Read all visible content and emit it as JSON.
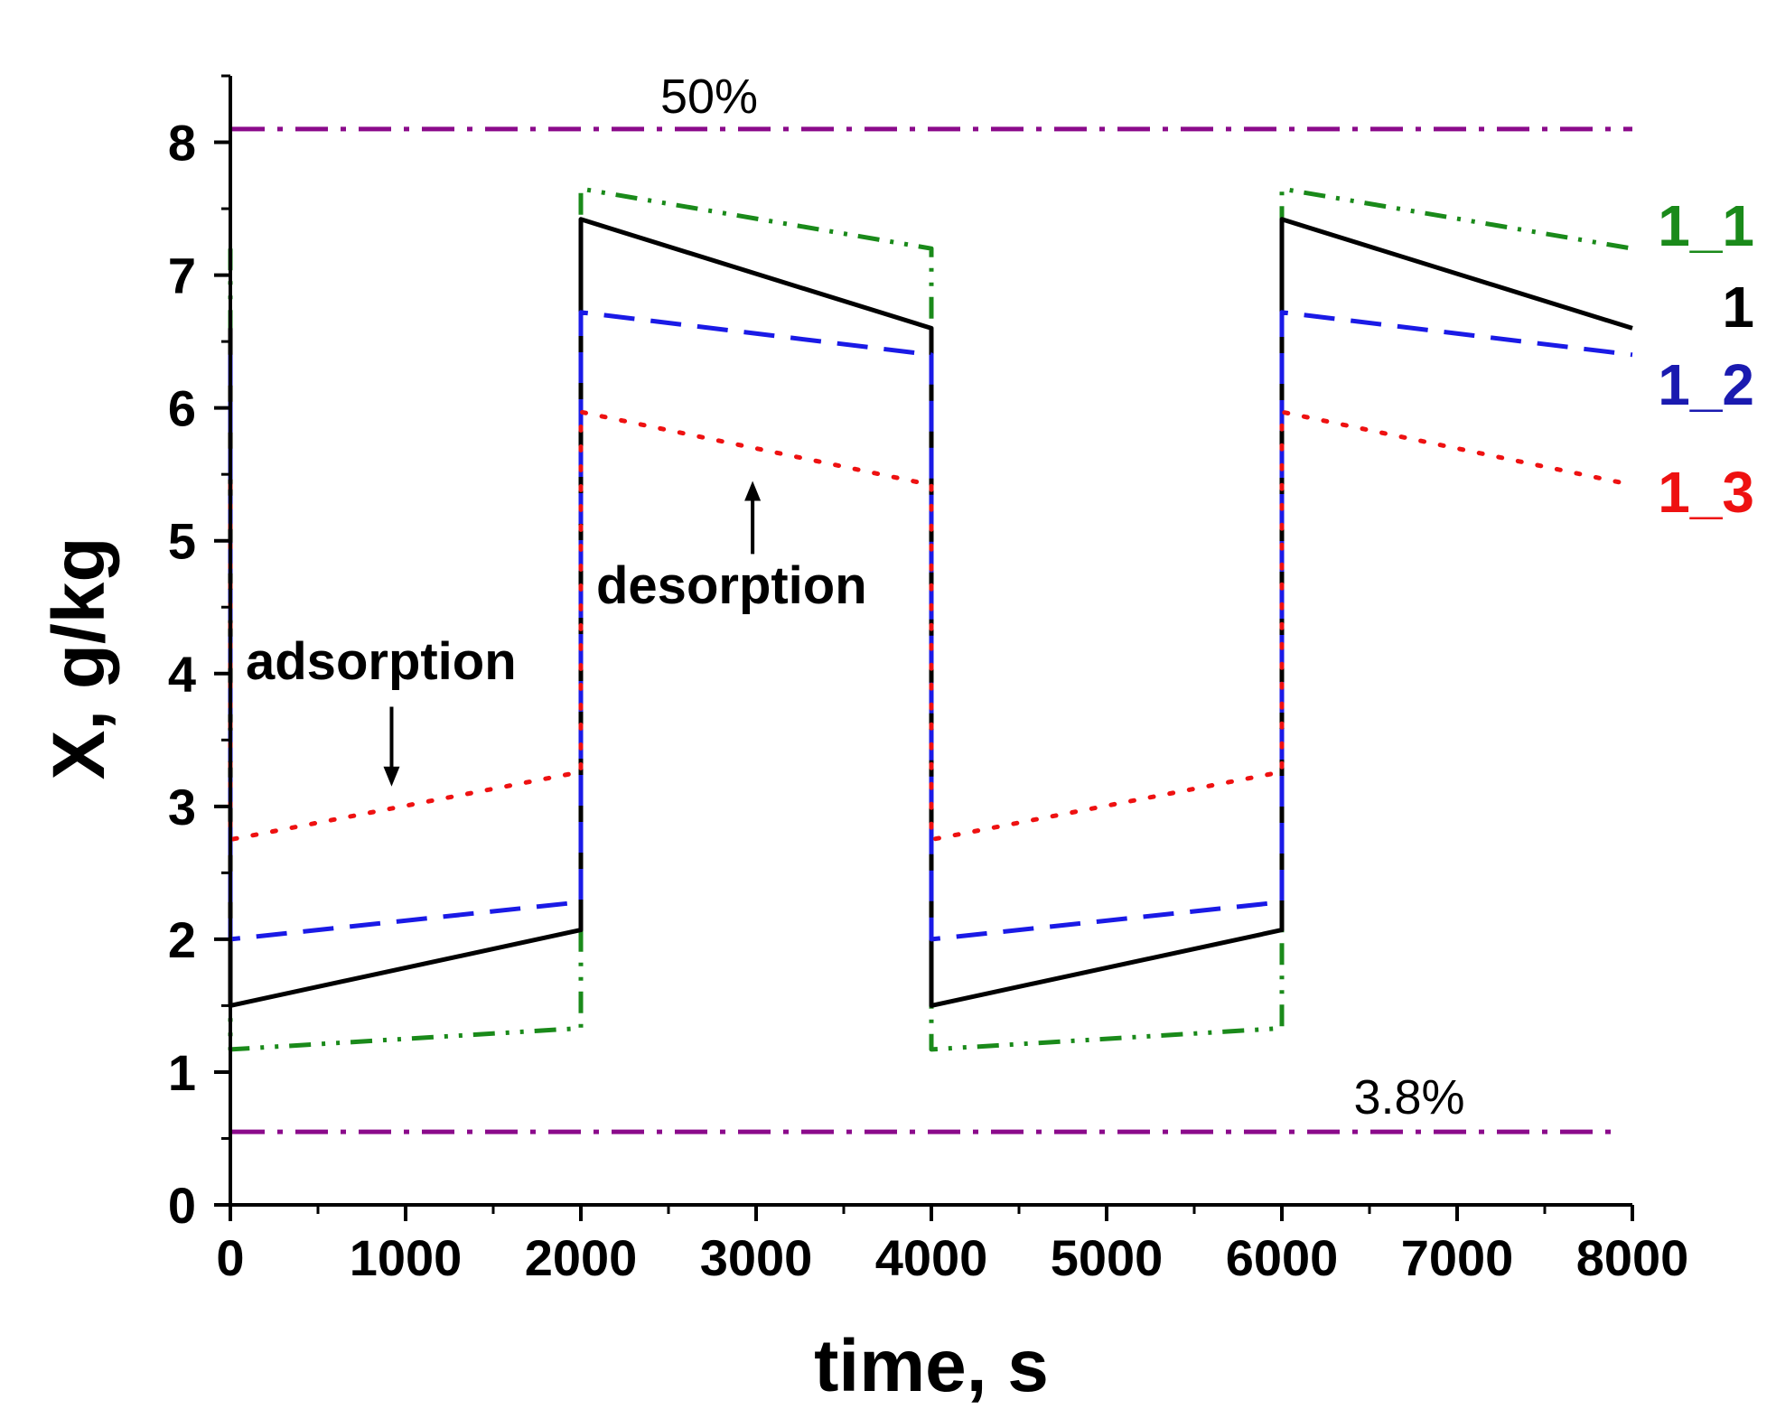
{
  "chart_data": {
    "type": "line",
    "title": "",
    "xlabel": "time, s",
    "ylabel": "X, g/kg",
    "xlim": [
      0,
      8000
    ],
    "ylim": [
      0,
      8.5
    ],
    "xticks": [
      0,
      1000,
      2000,
      3000,
      4000,
      5000,
      6000,
      7000,
      8000
    ],
    "yticks": [
      0,
      1,
      2,
      3,
      4,
      5,
      6,
      7,
      8
    ],
    "grid": false,
    "series": [
      {
        "name": "1_1",
        "color": "#1a8a1a",
        "style": "dash-dot-dot",
        "x": [
          0,
          0,
          2000,
          2000,
          4000,
          4000,
          6000,
          6000,
          8000
        ],
        "y": [
          7.2,
          1.17,
          1.33,
          7.65,
          7.2,
          1.17,
          1.33,
          7.65,
          7.2
        ]
      },
      {
        "name": "1",
        "color": "#000000",
        "style": "solid",
        "x": [
          0,
          0,
          2000,
          2000,
          4000,
          4000,
          6000,
          6000,
          8000
        ],
        "y": [
          6.6,
          1.5,
          2.07,
          7.42,
          6.6,
          1.5,
          2.07,
          7.42,
          6.6
        ]
      },
      {
        "name": "1_2",
        "color": "#1a1ae6",
        "style": "dash",
        "x": [
          0,
          0,
          2000,
          2000,
          4000,
          4000,
          6000,
          6000,
          8000
        ],
        "y": [
          6.4,
          2.0,
          2.28,
          6.72,
          6.4,
          2.0,
          2.28,
          6.72,
          6.4
        ]
      },
      {
        "name": "1_3",
        "color": "#ee1111",
        "style": "dot",
        "x": [
          0,
          0,
          2000,
          2000,
          4000,
          4000,
          6000,
          6000,
          8000
        ],
        "y": [
          5.42,
          2.75,
          3.26,
          5.97,
          5.42,
          2.75,
          3.26,
          5.97,
          5.42
        ]
      }
    ],
    "reference_lines": [
      {
        "label": "50%",
        "y": 8.1,
        "color": "#8b0a8b",
        "x_end": 8000
      },
      {
        "label": "3.8%",
        "y": 0.55,
        "color": "#8b0a8b",
        "x_end": 7900
      }
    ],
    "annotations": [
      {
        "text": "adsorption",
        "arrow": "down",
        "arrow_x": 920,
        "arrow_from_y": 3.75,
        "arrow_to_y": 3.15
      },
      {
        "text": "desorption",
        "arrow": "up",
        "arrow_x": 2980,
        "arrow_from_y": 4.9,
        "arrow_to_y": 5.45
      }
    ]
  }
}
